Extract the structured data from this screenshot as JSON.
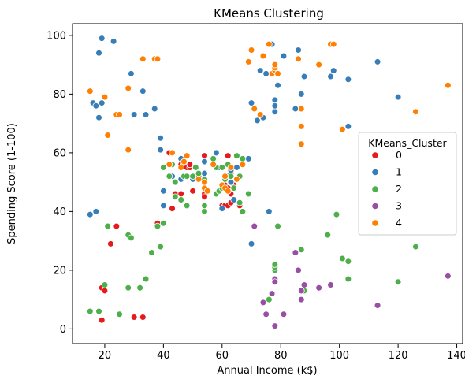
{
  "chart_data": {
    "type": "scatter",
    "title": "KMeans Clustering",
    "xlabel": "Annual Income (k$)",
    "ylabel": "Spending Score (1-100)",
    "xlim": [
      9,
      142
    ],
    "ylim": [
      -5,
      104
    ],
    "xticks": [
      20,
      40,
      60,
      80,
      100,
      120,
      140
    ],
    "yticks": [
      0,
      20,
      40,
      60,
      80,
      100
    ],
    "grid": false,
    "legend": {
      "title": "KMeans_Cluster",
      "placement": "center-right"
    },
    "colors": {
      "0": "#e41a1c",
      "1": "#377eb8",
      "2": "#4daf4a",
      "3": "#984ea3",
      "4": "#ff7f00"
    },
    "series": [
      {
        "name": "0",
        "points": [
          [
            19,
            14
          ],
          [
            19,
            3
          ],
          [
            20,
            13
          ],
          [
            22,
            29
          ],
          [
            24,
            35
          ],
          [
            30,
            4
          ],
          [
            33,
            4
          ],
          [
            38,
            36
          ],
          [
            40,
            55
          ],
          [
            42,
            60
          ],
          [
            43,
            41
          ],
          [
            43,
            60
          ],
          [
            44,
            46
          ],
          [
            46,
            46
          ],
          [
            46,
            56
          ],
          [
            47,
            56
          ],
          [
            48,
            55
          ],
          [
            49,
            55
          ],
          [
            49,
            56
          ],
          [
            50,
            47
          ],
          [
            54,
            46
          ],
          [
            54,
            59
          ],
          [
            54,
            45
          ],
          [
            60,
            42
          ],
          [
            61,
            42
          ],
          [
            61,
            49
          ],
          [
            62,
            59
          ],
          [
            62,
            42
          ],
          [
            62,
            48
          ],
          [
            63,
            43
          ],
          [
            63,
            46
          ],
          [
            63,
            53
          ],
          [
            64,
            49
          ],
          [
            66,
            42
          ]
        ]
      },
      {
        "name": "1",
        "points": [
          [
            15,
            39
          ],
          [
            16,
            77
          ],
          [
            17,
            76
          ],
          [
            17,
            40
          ],
          [
            18,
            94
          ],
          [
            18,
            72
          ],
          [
            19,
            99
          ],
          [
            19,
            77
          ],
          [
            23,
            98
          ],
          [
            25,
            73
          ],
          [
            29,
            87
          ],
          [
            30,
            73
          ],
          [
            33,
            81
          ],
          [
            34,
            73
          ],
          [
            37,
            75
          ],
          [
            39,
            65
          ],
          [
            39,
            61
          ],
          [
            40,
            47
          ],
          [
            40,
            42
          ],
          [
            43,
            52
          ],
          [
            44,
            50
          ],
          [
            46,
            51
          ],
          [
            46,
            58
          ],
          [
            48,
            59
          ],
          [
            50,
            51
          ],
          [
            52,
            52
          ],
          [
            54,
            57
          ],
          [
            54,
            51
          ],
          [
            54,
            53
          ],
          [
            58,
            60
          ],
          [
            59,
            55
          ],
          [
            60,
            41
          ],
          [
            62,
            52
          ],
          [
            63,
            54
          ],
          [
            63,
            50
          ],
          [
            64,
            44
          ],
          [
            65,
            55
          ],
          [
            69,
            58
          ],
          [
            70,
            77
          ],
          [
            70,
            29
          ],
          [
            71,
            75
          ],
          [
            72,
            71
          ],
          [
            73,
            88
          ],
          [
            74,
            72
          ],
          [
            75,
            87
          ],
          [
            76,
            40
          ],
          [
            77,
            97
          ],
          [
            78,
            74
          ],
          [
            78,
            76
          ],
          [
            78,
            78
          ],
          [
            79,
            83
          ],
          [
            81,
            93
          ],
          [
            85,
            75
          ],
          [
            86,
            95
          ],
          [
            87,
            80
          ],
          [
            88,
            86
          ],
          [
            97,
            86
          ],
          [
            98,
            88
          ],
          [
            103,
            85
          ],
          [
            103,
            69
          ],
          [
            113,
            91
          ],
          [
            120,
            79
          ]
        ]
      },
      {
        "name": "2",
        "points": [
          [
            15,
            6
          ],
          [
            18,
            6
          ],
          [
            20,
            15
          ],
          [
            21,
            35
          ],
          [
            25,
            5
          ],
          [
            28,
            14
          ],
          [
            28,
            32
          ],
          [
            29,
            31
          ],
          [
            32,
            14
          ],
          [
            34,
            17
          ],
          [
            36,
            26
          ],
          [
            38,
            35
          ],
          [
            39,
            28
          ],
          [
            40,
            36
          ],
          [
            40,
            55
          ],
          [
            42,
            52
          ],
          [
            43,
            56
          ],
          [
            44,
            50
          ],
          [
            44,
            45
          ],
          [
            46,
            44
          ],
          [
            47,
            52
          ],
          [
            48,
            42
          ],
          [
            48,
            52
          ],
          [
            50,
            52
          ],
          [
            51,
            55
          ],
          [
            52,
            53
          ],
          [
            54,
            51
          ],
          [
            54,
            40
          ],
          [
            54,
            42
          ],
          [
            57,
            58
          ],
          [
            58,
            55
          ],
          [
            58,
            46
          ],
          [
            59,
            47
          ],
          [
            60,
            55
          ],
          [
            60,
            48
          ],
          [
            61,
            51
          ],
          [
            62,
            47
          ],
          [
            62,
            56
          ],
          [
            63,
            52
          ],
          [
            64,
            48
          ],
          [
            65,
            59
          ],
          [
            66,
            43
          ],
          [
            66,
            52
          ],
          [
            67,
            40
          ],
          [
            67,
            58
          ],
          [
            69,
            46
          ],
          [
            75,
            5
          ],
          [
            76,
            10
          ],
          [
            78,
            20
          ],
          [
            78,
            21
          ],
          [
            78,
            22
          ],
          [
            79,
            35
          ],
          [
            87,
            27
          ],
          [
            88,
            13
          ],
          [
            96,
            32
          ],
          [
            99,
            39
          ],
          [
            101,
            24
          ],
          [
            103,
            17
          ],
          [
            103,
            23
          ],
          [
            120,
            16
          ],
          [
            126,
            28
          ]
        ]
      },
      {
        "name": "3",
        "points": [
          [
            71,
            35
          ],
          [
            74,
            9
          ],
          [
            75,
            5
          ],
          [
            77,
            12
          ],
          [
            78,
            17
          ],
          [
            78,
            16
          ],
          [
            78,
            1
          ],
          [
            81,
            5
          ],
          [
            85,
            26
          ],
          [
            86,
            20
          ],
          [
            87,
            13
          ],
          [
            87,
            10
          ],
          [
            88,
            15
          ],
          [
            93,
            14
          ],
          [
            97,
            15
          ],
          [
            113,
            8
          ],
          [
            137,
            18
          ]
        ]
      },
      {
        "name": "4",
        "points": [
          [
            15,
            81
          ],
          [
            20,
            79
          ],
          [
            21,
            66
          ],
          [
            24,
            73
          ],
          [
            25,
            73
          ],
          [
            28,
            82
          ],
          [
            28,
            61
          ],
          [
            33,
            92
          ],
          [
            37,
            92
          ],
          [
            38,
            92
          ],
          [
            42,
            56
          ],
          [
            43,
            60
          ],
          [
            46,
            55
          ],
          [
            47,
            57
          ],
          [
            48,
            59
          ],
          [
            52,
            51
          ],
          [
            54,
            48
          ],
          [
            54,
            50
          ],
          [
            55,
            47
          ],
          [
            57,
            56
          ],
          [
            60,
            49
          ],
          [
            61,
            48
          ],
          [
            61,
            52
          ],
          [
            62,
            47
          ],
          [
            63,
            55
          ],
          [
            65,
            51
          ],
          [
            67,
            56
          ],
          [
            69,
            91
          ],
          [
            70,
            95
          ],
          [
            71,
            75
          ],
          [
            73,
            73
          ],
          [
            74,
            93
          ],
          [
            76,
            97
          ],
          [
            77,
            87
          ],
          [
            78,
            88
          ],
          [
            78,
            89
          ],
          [
            78,
            90
          ],
          [
            79,
            87
          ],
          [
            86,
            92
          ],
          [
            87,
            75
          ],
          [
            87,
            63
          ],
          [
            87,
            69
          ],
          [
            93,
            90
          ],
          [
            97,
            97
          ],
          [
            98,
            97
          ],
          [
            101,
            68
          ],
          [
            126,
            74
          ],
          [
            137,
            83
          ]
        ]
      }
    ]
  }
}
